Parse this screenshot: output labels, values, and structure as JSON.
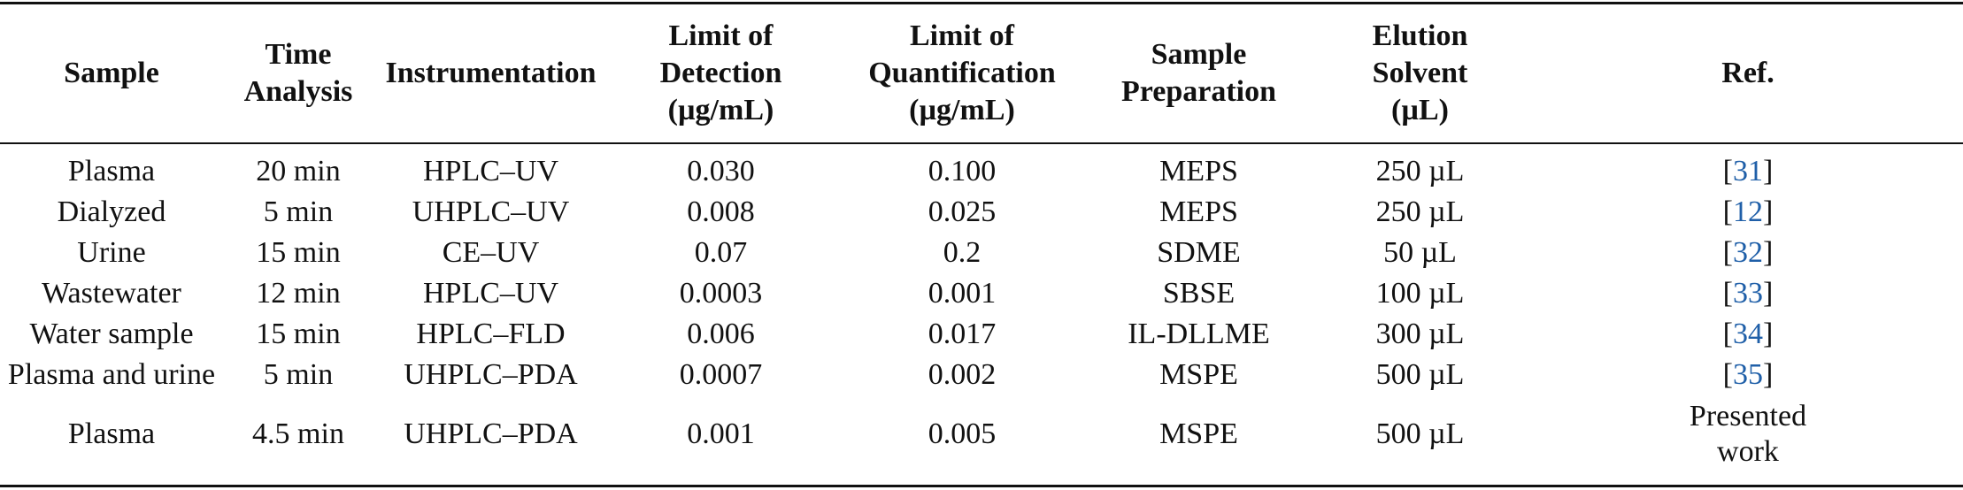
{
  "headers": {
    "sample": "Sample",
    "time_analysis": [
      "Time",
      "Analysis"
    ],
    "instrumentation": "Instrumentation",
    "lod": [
      "Limit of",
      "Detection",
      "(µg/mL)"
    ],
    "loq": [
      "Limit of",
      "Quantification",
      "(µg/mL)"
    ],
    "sample_preparation": [
      "Sample",
      "Preparation"
    ],
    "elution_solvent": [
      "Elution",
      "Solvent",
      "(µL)"
    ],
    "ref": "Ref."
  },
  "rows": [
    {
      "sample": "Plasma",
      "time": "20 min",
      "instrumentation": "HPLC–UV",
      "lod": "0.030",
      "loq": "0.100",
      "preparation": "MEPS",
      "solvent": "250 µL",
      "ref": "31"
    },
    {
      "sample": "Dialyzed",
      "time": "5 min",
      "instrumentation": "UHPLC–UV",
      "lod": "0.008",
      "loq": "0.025",
      "preparation": "MEPS",
      "solvent": "250 µL",
      "ref": "12"
    },
    {
      "sample": "Urine",
      "time": "15 min",
      "instrumentation": "CE–UV",
      "lod": "0.07",
      "loq": "0.2",
      "preparation": "SDME",
      "solvent": "50 µL",
      "ref": "32"
    },
    {
      "sample": "Wastewater",
      "time": "12 min",
      "instrumentation": "HPLC–UV",
      "lod": "0.0003",
      "loq": "0.001",
      "preparation": "SBSE",
      "solvent": "100 µL",
      "ref": "33"
    },
    {
      "sample": "Water sample",
      "time": "15 min",
      "instrumentation": "HPLC–FLD",
      "lod": "0.006",
      "loq": "0.017",
      "preparation": "IL-DLLME",
      "solvent": "300 µL",
      "ref": "34"
    },
    {
      "sample": "Plasma and urine",
      "time": "5 min",
      "instrumentation": "UHPLC–PDA",
      "lod": "0.0007",
      "loq": "0.002",
      "preparation": "MSPE",
      "solvent": "500 µL",
      "ref": "35"
    },
    {
      "sample": "Plasma",
      "time": "4.5 min",
      "instrumentation": "UHPLC–PDA",
      "lod": "0.001",
      "loq": "0.005",
      "preparation": "MSPE",
      "solvent": "500 µL",
      "ref_text": [
        "Presented",
        "work"
      ]
    }
  ]
}
